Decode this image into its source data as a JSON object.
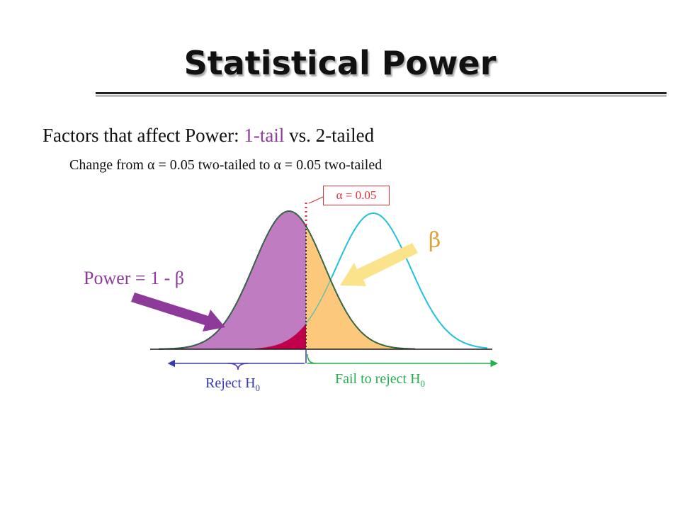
{
  "slide": {
    "title": "Statistical Power",
    "heading_prefix": "Factors that affect Power:",
    "heading_highlight": "1-tail",
    "heading_suffix": "vs. 2-tailed",
    "subtext": "Change from α = 0.05 two-tailed to α = 0.05 two-tailed"
  },
  "diagram": {
    "alpha_label": "α = 0.05",
    "beta_label": "β",
    "power_label": "Power = 1 - β",
    "reject_label": "Reject H",
    "fail_label": "Fail to reject H",
    "subscript": "0"
  },
  "colors": {
    "power_region": "#c07cc0",
    "beta_region": "#fcc97c",
    "alpha_region": "#c0004a",
    "alt_curve": "#22c0e0",
    "power_arrow": "#8e3a9b",
    "beta_arrow": "#fbe38c",
    "reject_arrow": "#3a3ab0",
    "fail_arrow": "#22b14c",
    "alpha_marker": "#e0303a"
  }
}
